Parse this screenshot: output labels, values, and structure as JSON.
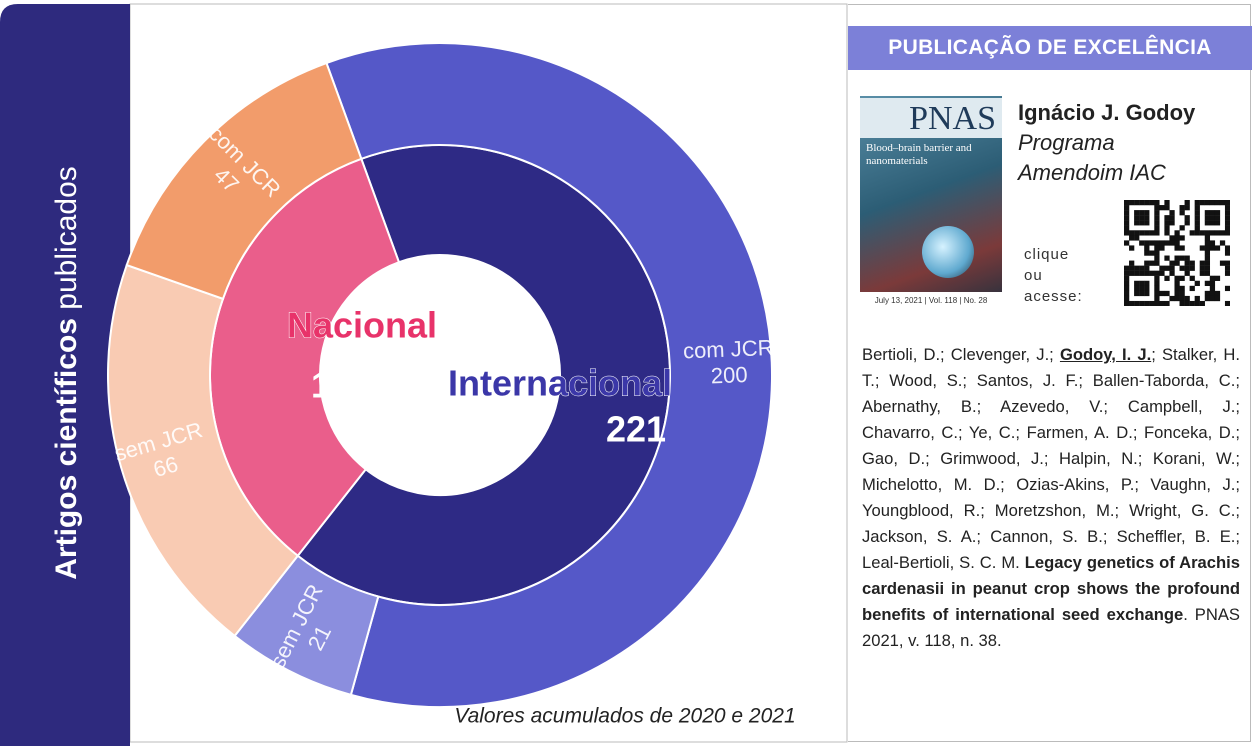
{
  "chart_data": {
    "type": "sunburst",
    "title_parts": [
      "Artigos científicos",
      "publicados"
    ],
    "note": "Valores acumulados de 2020 e 2021",
    "series": [
      {
        "name": "Internacional",
        "color": "#2e2a85",
        "value": 221,
        "children": [
          {
            "name": "com JCR",
            "value": 200,
            "color": "#5558c8"
          },
          {
            "name": "sem JCR",
            "value": 21,
            "color": "#8b8ede"
          }
        ]
      },
      {
        "name": "Nacional",
        "color": "#ea5e8b",
        "value": 113,
        "children": [
          {
            "name": "sem JCR",
            "value": 66,
            "color": "#f9cbb3"
          },
          {
            "name": "com JCR",
            "value": 47,
            "color": "#f29c6b"
          }
        ]
      }
    ]
  },
  "panel": {
    "header": "PUBLICAÇÃO DE EXCELÊNCIA",
    "cover": {
      "journal": "PNAS",
      "headline": "Blood–brain barrier and nanomaterials",
      "footer": "July 13, 2021 | Vol. 118 | No. 28"
    },
    "author": "Ignácio J. Godoy",
    "program": "Programa Amendoim IAC",
    "cta": [
      "clique",
      "ou",
      "acesse:"
    ],
    "citation": {
      "before": "Bertioli, D.; Clevenger, J.; ",
      "highlight": "Godoy, I. J.",
      "middle": "; Stalker, H. T.; Wood, S.; Santos, J. F.; Ballen-Taborda, C.; Abernathy, B.; Azevedo, V.; Campbell, J.; Chavarro, C.; Ye, C.; Farmen, A. D.; Fonceka, D.; Gao, D.; Grimwood, J.; Halpin, N.; Korani, W.; Michelotto, M. D.; Ozias-Akins, P.; Vaughn, J.; Youngblood, R.; Moretzshon, M.; Wright, G. C.; Jackson, S. A.; Cannon, S. B.; Scheffler, B. E.; Leal-Bertioli, S. C. M. ",
      "title": "Legacy genetics of Arachis cardenasii in peanut crop shows the profound benefits of international seed exchange",
      "after": ". PNAS 2021, v. 118, n. 38."
    }
  }
}
